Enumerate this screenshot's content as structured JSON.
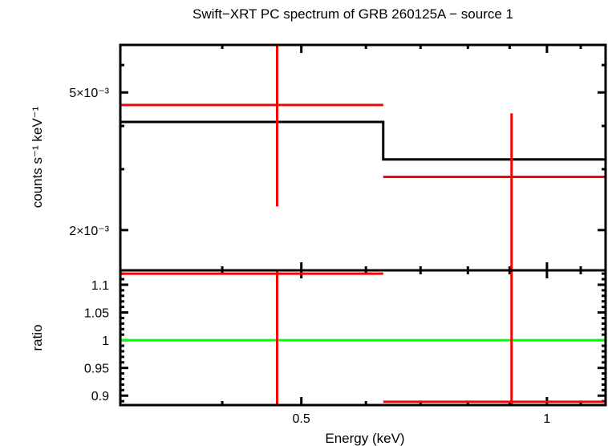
{
  "chart_data": {
    "type": "scatter",
    "title": "Swift−XRT PC spectrum of GRB 260125A − source 1",
    "xlabel": "Energy (keV)",
    "xscale": "log",
    "xlim": [
      0.3,
      1.18
    ],
    "x_ticks": [
      {
        "label": "0.5",
        "value": 0.5
      },
      {
        "label": "1",
        "value": 1
      }
    ],
    "panels": [
      {
        "name": "spectrum",
        "ylabel": "counts s⁻¹ keV⁻¹",
        "yscale": "log",
        "ylim": [
          0.00153,
          0.00686
        ],
        "y_ticks": [
          {
            "label": "5×10⁻³",
            "value": 0.005
          },
          {
            "label": "2×10⁻³",
            "value": 0.002
          }
        ],
        "series": [
          {
            "name": "data",
            "color": "#ff0000",
            "points": [
              {
                "x": 0.467,
                "xlo": 0.3,
                "xhi": 0.63,
                "y": 0.0046,
                "ylo": 0.00234,
                "yhi": 0.00686
              },
              {
                "x": 0.905,
                "xlo": 0.63,
                "xhi": 1.18,
                "y": 0.00285,
                "ylo": 0.00153,
                "yhi": 0.00435
              }
            ]
          },
          {
            "name": "model",
            "color": "#000000",
            "step": [
              {
                "xlo": 0.3,
                "xhi": 0.63,
                "y": 0.00411
              },
              {
                "xlo": 0.63,
                "xhi": 1.18,
                "y": 0.0032
              }
            ]
          }
        ]
      },
      {
        "name": "ratio",
        "ylabel": "ratio",
        "yscale": "linear",
        "ylim": [
          0.883,
          1.126
        ],
        "y_ticks": [
          {
            "label": "1.1",
            "value": 1.1
          },
          {
            "label": "1.05",
            "value": 1.05
          },
          {
            "label": "1",
            "value": 1.0
          },
          {
            "label": "0.95",
            "value": 0.95
          },
          {
            "label": "0.9",
            "value": 0.9
          }
        ],
        "series": [
          {
            "name": "ratio",
            "color": "#ff0000",
            "points": [
              {
                "x": 0.467,
                "xlo": 0.3,
                "xhi": 0.63,
                "y": 1.12,
                "ylo": 0.883,
                "yhi": 1.126
              },
              {
                "x": 0.905,
                "xlo": 0.63,
                "xhi": 1.18,
                "y": 0.889,
                "ylo": 0.883,
                "yhi": 1.126
              }
            ]
          },
          {
            "name": "unity",
            "color": "#00ff00",
            "y": 1.0
          }
        ]
      }
    ]
  }
}
